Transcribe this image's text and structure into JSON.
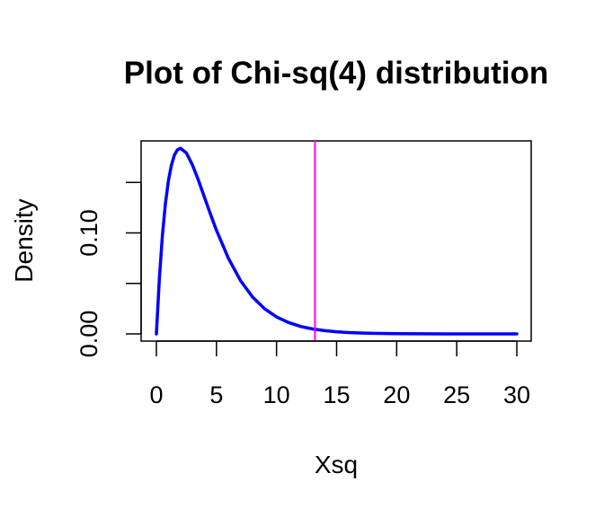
{
  "chart_data": {
    "type": "line",
    "title": "Plot of Chi-sq(4) distribution",
    "xlabel": "Xsq",
    "ylabel": "Density",
    "xlim": [
      0,
      30
    ],
    "ylim": [
      0,
      0.184
    ],
    "x_ticks": [
      0,
      5,
      10,
      15,
      20,
      25,
      30
    ],
    "x_tick_labels": [
      "0",
      "5",
      "10",
      "15",
      "20",
      "25",
      "30"
    ],
    "y_ticks": [
      0,
      0.05,
      0.1,
      0.15
    ],
    "y_tick_labels": [
      "0.00",
      "",
      "0.10",
      ""
    ],
    "grid": false,
    "series": [
      {
        "color": "#0000ff",
        "x": [
          0,
          0.25,
          0.5,
          0.75,
          1,
          1.25,
          1.5,
          1.75,
          2,
          2.5,
          3,
          3.5,
          4,
          4.5,
          5,
          6,
          7,
          8,
          9,
          10,
          11,
          12,
          13,
          14,
          15,
          16,
          17,
          18,
          20,
          22,
          24,
          26,
          28,
          30
        ],
        "y": [
          0,
          0.0551,
          0.0974,
          0.1289,
          0.1516,
          0.1671,
          0.1771,
          0.1823,
          0.1839,
          0.1791,
          0.1673,
          0.1521,
          0.1353,
          0.1186,
          0.1026,
          0.0747,
          0.0528,
          0.0366,
          0.025,
          0.0168,
          0.0113,
          0.0074,
          0.0049,
          0.0032,
          0.0021,
          0.0013,
          0.0009,
          0.0006,
          0.0002,
          0.0001,
          0.0,
          0.0,
          0.0,
          0.0
        ]
      }
    ],
    "annotations": [
      {
        "type": "vline",
        "x": 13.2,
        "color": "#ff00ff"
      }
    ]
  }
}
